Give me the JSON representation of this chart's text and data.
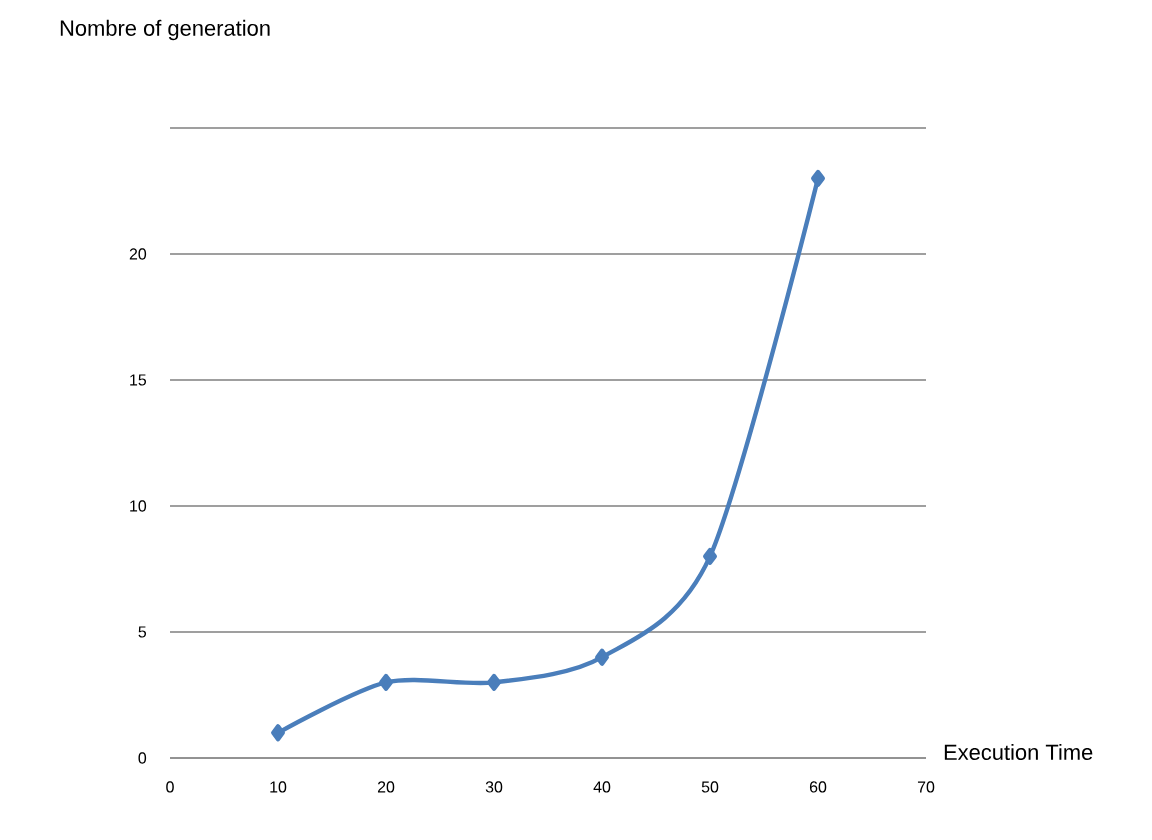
{
  "chart_data": {
    "type": "line",
    "xlabel": "Execution Time",
    "ylabel": "Nombre of generation",
    "x": [
      10,
      20,
      30,
      40,
      50,
      60
    ],
    "series": [
      {
        "color": "#4a7ebb",
        "values": [
          1,
          3,
          3,
          4,
          8,
          23
        ]
      }
    ],
    "xlim": [
      0,
      70
    ],
    "xticks": [
      0,
      10,
      20,
      30,
      40,
      50,
      60,
      70
    ],
    "ylim": [
      0,
      25
    ],
    "yticks": [
      0,
      5,
      10,
      15,
      20,
      {
        "value": 25,
        "label": null
      }
    ],
    "grid": "y",
    "marker": "diamond",
    "line_style": "solid"
  }
}
